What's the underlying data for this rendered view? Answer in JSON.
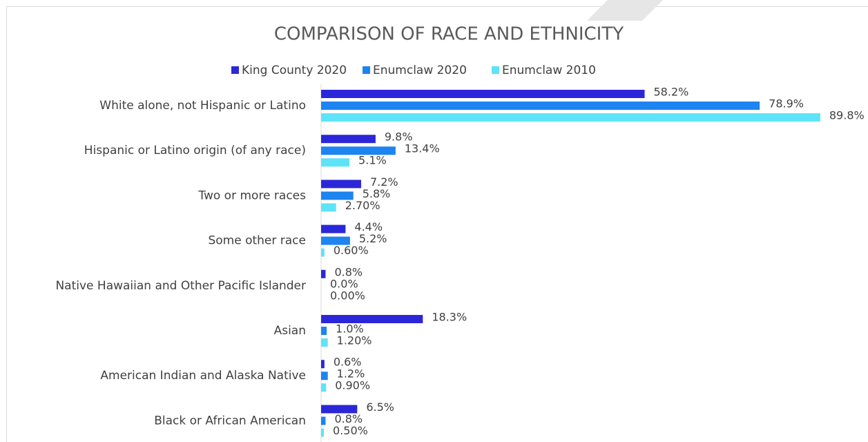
{
  "chart_data": {
    "type": "bar",
    "orientation": "horizontal",
    "title": "COMPARISON OF RACE AND ETHNICITY",
    "categories": [
      "White alone, not Hispanic or Latino",
      "Hispanic or Latino origin (of any race)",
      "Two or more races",
      "Some other race",
      "Native Hawaiian and Other Pacific Islander",
      "Asian",
      "American Indian and Alaska Native",
      "Black or African American"
    ],
    "series": [
      {
        "name": "King County 2020",
        "color": "#2b27d9",
        "values": [
          58.2,
          9.8,
          7.2,
          4.4,
          0.8,
          18.3,
          0.6,
          6.5
        ],
        "value_labels": [
          "58.2%",
          "9.8%",
          "7.2%",
          "4.4%",
          "0.8%",
          "18.3%",
          "0.6%",
          "6.5%"
        ]
      },
      {
        "name": "Enumclaw 2020",
        "color": "#1d84f0",
        "values": [
          78.9,
          13.4,
          5.8,
          5.2,
          0.0,
          1.0,
          1.2,
          0.8
        ],
        "value_labels": [
          "78.9%",
          "13.4%",
          "5.8%",
          "5.2%",
          "0.0%",
          "1.0%",
          "1.2%",
          "0.8%"
        ]
      },
      {
        "name": "Enumclaw 2010",
        "color": "#5ee3f9",
        "values": [
          89.8,
          5.1,
          2.7,
          0.6,
          0.0,
          1.2,
          0.9,
          0.5
        ],
        "value_labels": [
          "89.8%",
          "5.1%",
          "2.70%",
          "0.60%",
          "0.00%",
          "1.20%",
          "0.90%",
          "0.50%"
        ]
      }
    ],
    "legend": "top"
  }
}
